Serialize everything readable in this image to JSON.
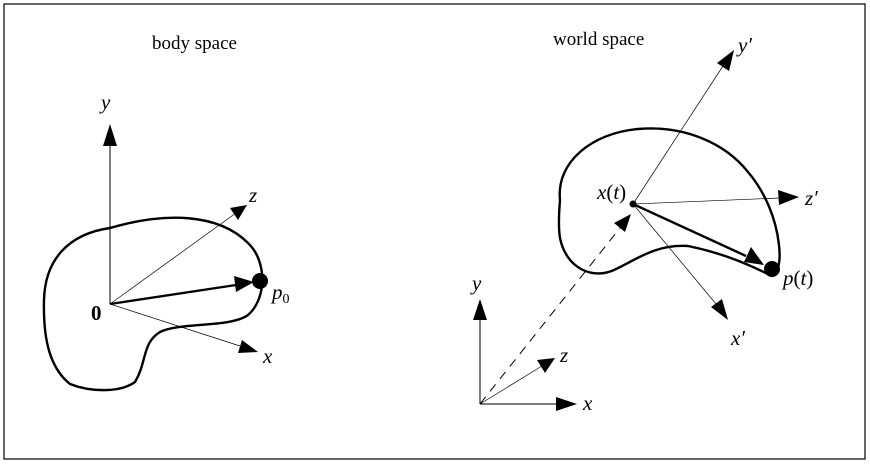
{
  "figure": {
    "left_panel": {
      "title": "body space",
      "axes": {
        "y": "y",
        "z": "z",
        "x": "x"
      },
      "origin": "0",
      "point": {
        "base": "p",
        "subscript": "0"
      }
    },
    "right_panel": {
      "title": "world space",
      "world_axes": {
        "y": "y",
        "z": "z",
        "x": "x"
      },
      "body_axes": {
        "y": "y′",
        "z": "z′",
        "x": "x′"
      },
      "center": {
        "base": "x",
        "paren_open": "(",
        "arg": "t",
        "paren_close": ")"
      },
      "point": {
        "base": "p",
        "paren_open": "(",
        "arg": "t",
        "paren_close": ")"
      }
    },
    "colors": {
      "ink": "#000000",
      "background": "#ffffff"
    }
  }
}
